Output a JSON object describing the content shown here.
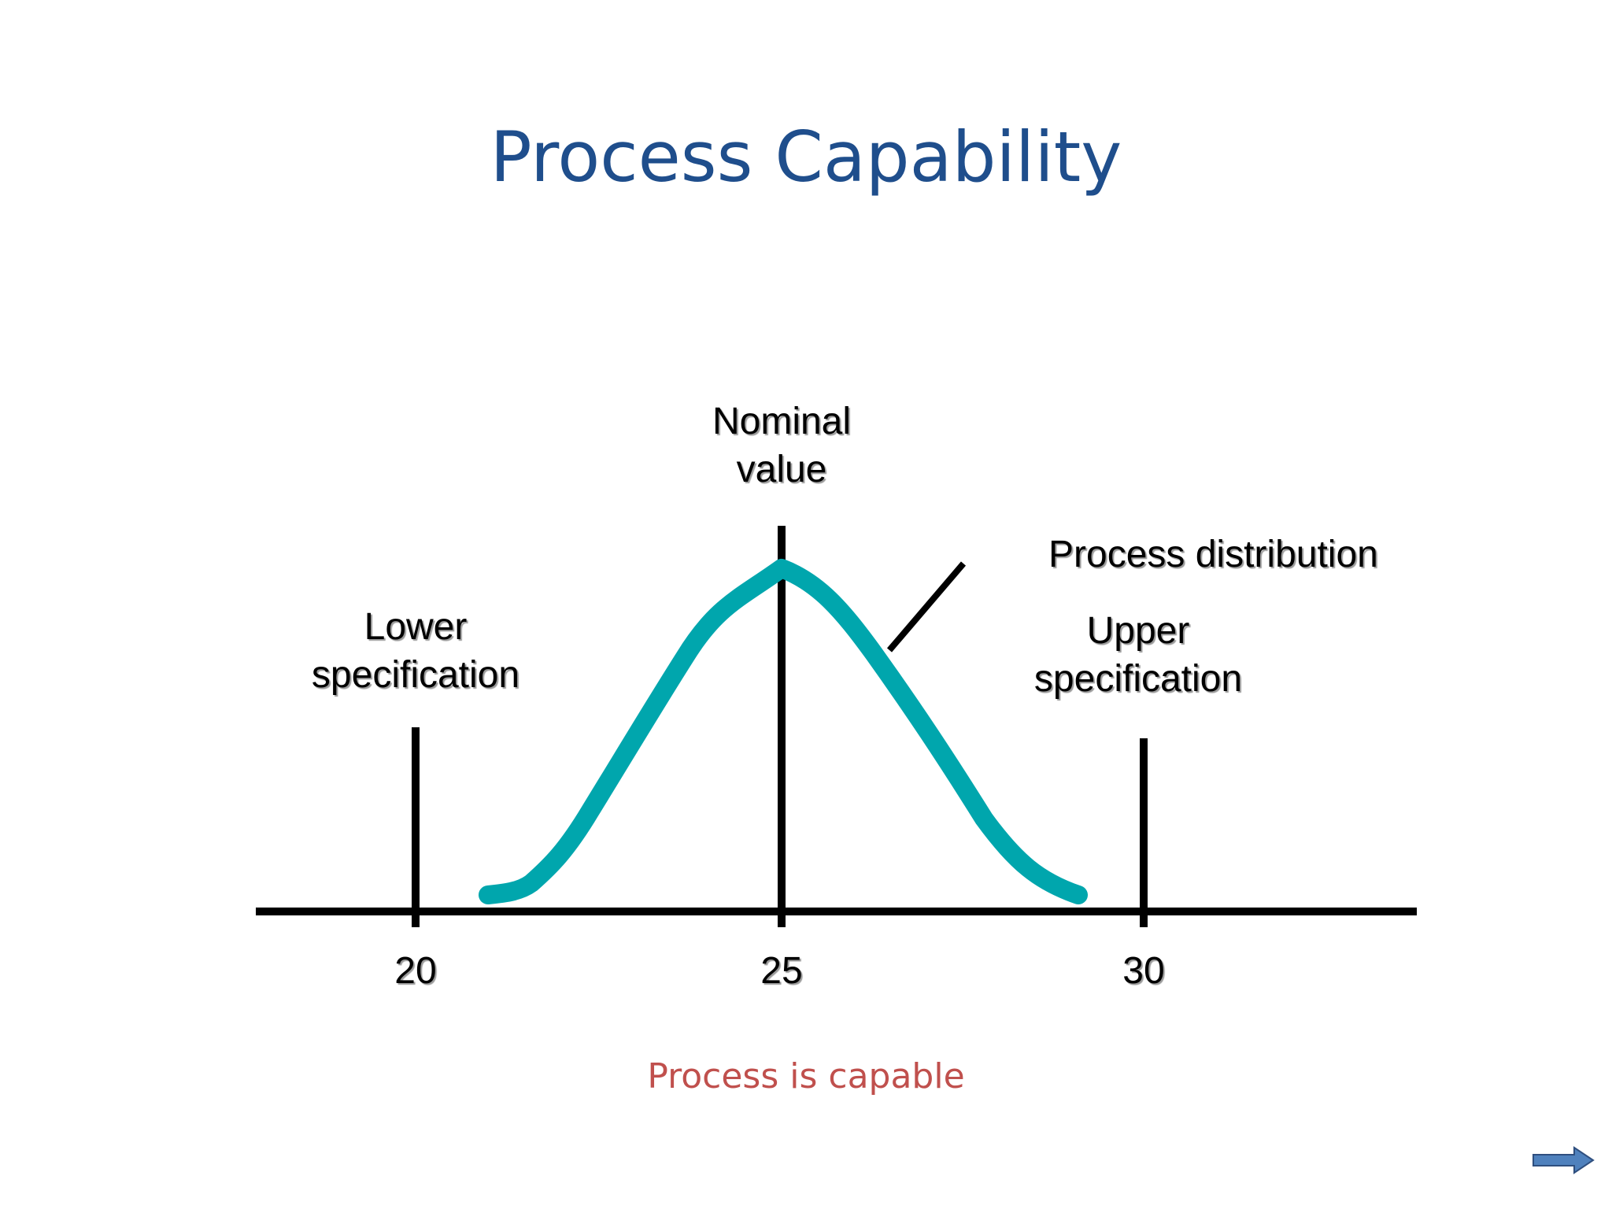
{
  "title": "Process Capability",
  "labels": {
    "nominal_line1": "Nominal",
    "nominal_line2": "value",
    "process_distribution": "Process distribution",
    "lower_line1": "Lower",
    "lower_line2": "specification",
    "upper_line1": "Upper",
    "upper_line2": "specification"
  },
  "axis": {
    "ticks": [
      "20",
      "25",
      "30"
    ]
  },
  "caption": "Process is capable",
  "colors": {
    "title": "#1f4e8c",
    "curve": "#00a6ad",
    "caption": "#c0504d",
    "lines": "#000000",
    "arrow": "#4f81bd"
  },
  "navigation": {
    "next_icon": "right-arrow-icon"
  }
}
